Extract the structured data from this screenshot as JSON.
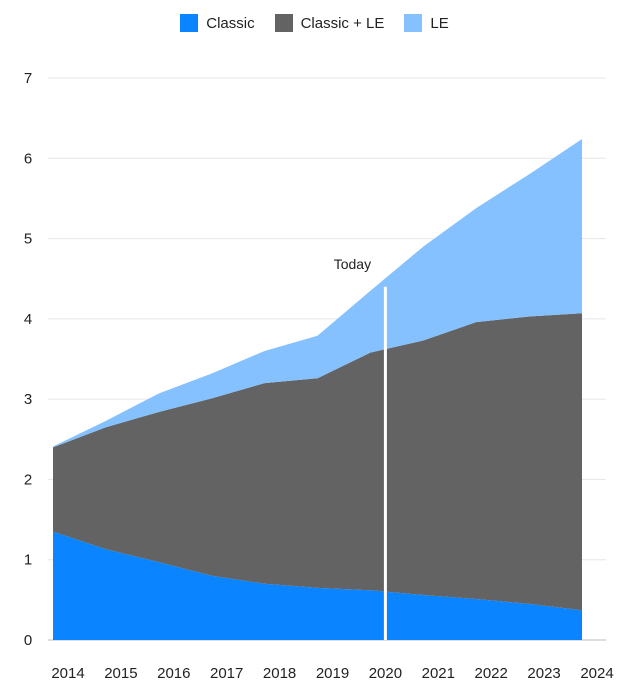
{
  "chart_data": {
    "type": "area",
    "stacked": true,
    "x": [
      "2014",
      "2015",
      "2016",
      "2017",
      "2018",
      "2019",
      "2020",
      "2021",
      "2022",
      "2023",
      "2024"
    ],
    "series": [
      {
        "name": "Classic",
        "color": "#0a84ff",
        "values": [
          1.35,
          1.13,
          0.97,
          0.8,
          0.7,
          0.65,
          0.62,
          0.56,
          0.51,
          0.45,
          0.37
        ]
      },
      {
        "name": "Classic + LE",
        "color": "#636363",
        "values": [
          1.05,
          1.52,
          1.87,
          2.21,
          2.5,
          2.61,
          2.96,
          3.17,
          3.45,
          3.58,
          3.7
        ]
      },
      {
        "name": "LE",
        "color": "#85c1ff",
        "values": [
          0.01,
          0.08,
          0.23,
          0.31,
          0.4,
          0.53,
          0.77,
          1.17,
          1.42,
          1.77,
          2.17
        ]
      }
    ],
    "yticks": [
      "0",
      "1",
      "2",
      "3",
      "4",
      "5",
      "6",
      "7"
    ],
    "ylim": [
      0,
      7
    ],
    "grid": true,
    "legend_position": "top-center",
    "annotation": {
      "label": "Today",
      "x": "2020"
    }
  }
}
